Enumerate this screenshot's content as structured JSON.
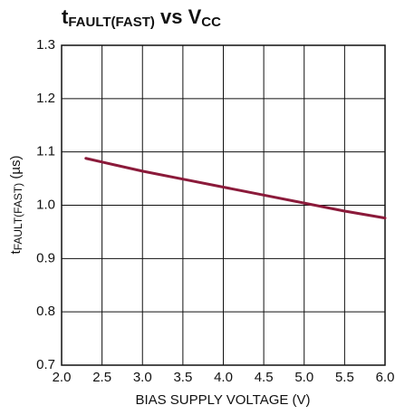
{
  "chart_data": {
    "type": "line",
    "title": [
      "t",
      "FAULT(FAST)",
      " vs V",
      "CC"
    ],
    "ylabel": [
      "t",
      "FAULT(FAST)",
      " (µs)"
    ],
    "xlabel": "BIAS SUPPLY VOLTAGE (V)",
    "x": [
      2.3,
      2.5,
      3.0,
      3.5,
      4.0,
      4.5,
      5.0,
      5.5,
      6.0
    ],
    "series": [
      {
        "name": null,
        "color": "#8b1a3a",
        "values": [
          1.088,
          1.081,
          1.064,
          1.049,
          1.034,
          1.019,
          1.004,
          0.989,
          0.976
        ]
      }
    ],
    "xlim": [
      2.0,
      6.0
    ],
    "xticks": [
      {
        "value": 2.0,
        "label": "2.0"
      },
      2.5,
      {
        "value": 3.0,
        "label": "3.0"
      },
      3.5,
      {
        "value": 4.0,
        "label": "4.0"
      },
      4.5,
      {
        "value": 5.0,
        "label": "5.0"
      },
      5.5,
      {
        "value": 6.0,
        "label": "6.0"
      }
    ],
    "ylim": [
      0.7,
      1.3
    ],
    "yticks": [
      0.7,
      0.8,
      0.9,
      {
        "value": 1.0,
        "label": "1.0"
      },
      1.1,
      1.2,
      1.3
    ],
    "grid": true
  }
}
